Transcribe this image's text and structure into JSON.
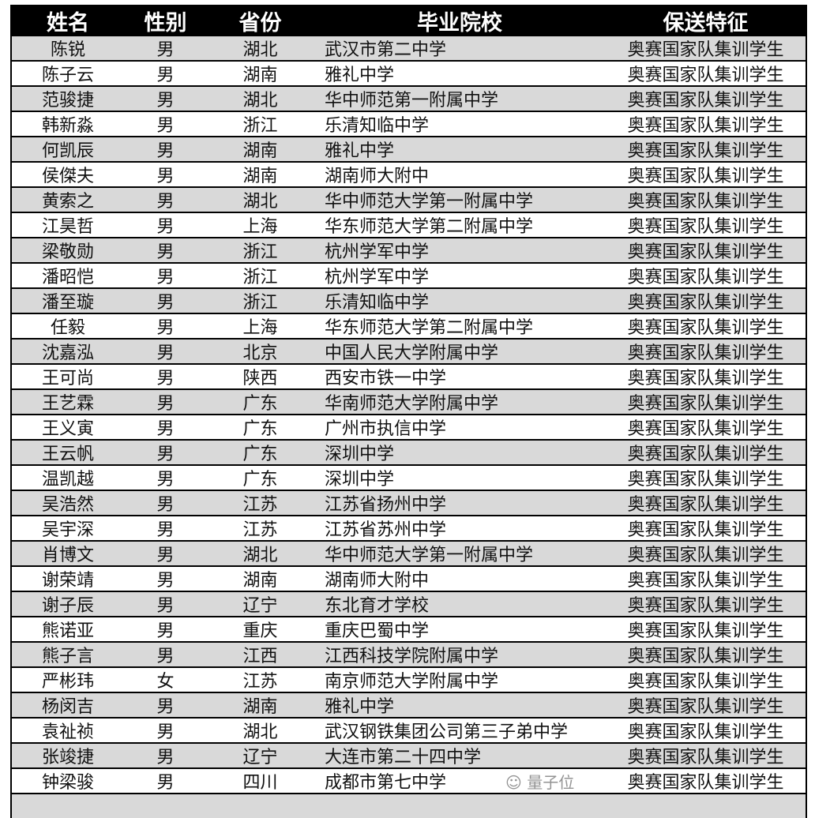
{
  "headers": [
    "姓名",
    "性别",
    "省份",
    "毕业院校",
    "保送特征"
  ],
  "rows": [
    [
      "陈锐",
      "男",
      "湖北",
      "武汉市第二中学",
      "奥赛国家队集训学生"
    ],
    [
      "陈子云",
      "男",
      "湖南",
      "雅礼中学",
      "奥赛国家队集训学生"
    ],
    [
      "范骏捷",
      "男",
      "湖北",
      "华中师范第一附属中学",
      "奥赛国家队集训学生"
    ],
    [
      "韩新淼",
      "男",
      "浙江",
      "乐清知临中学",
      "奥赛国家队集训学生"
    ],
    [
      "何凯辰",
      "男",
      "湖南",
      "雅礼中学",
      "奥赛国家队集训学生"
    ],
    [
      "侯傑夫",
      "男",
      "湖南",
      "湖南师大附中",
      "奥赛国家队集训学生"
    ],
    [
      "黄索之",
      "男",
      "湖北",
      "华中师范大学第一附属中学",
      "奥赛国家队集训学生"
    ],
    [
      "江昊哲",
      "男",
      "上海",
      "华东师范大学第二附属中学",
      "奥赛国家队集训学生"
    ],
    [
      "梁敬勋",
      "男",
      "浙江",
      "杭州学军中学",
      "奥赛国家队集训学生"
    ],
    [
      "潘昭恺",
      "男",
      "浙江",
      "杭州学军中学",
      "奥赛国家队集训学生"
    ],
    [
      "潘至璇",
      "男",
      "浙江",
      "乐清知临中学",
      "奥赛国家队集训学生"
    ],
    [
      "任毅",
      "男",
      "上海",
      "华东师范大学第二附属中学",
      "奥赛国家队集训学生"
    ],
    [
      "沈嘉泓",
      "男",
      "北京",
      "中国人民大学附属中学",
      "奥赛国家队集训学生"
    ],
    [
      "王可尚",
      "男",
      "陕西",
      "西安市铁一中学",
      "奥赛国家队集训学生"
    ],
    [
      "王艺霖",
      "男",
      "广东",
      "华南师范大学附属中学",
      "奥赛国家队集训学生"
    ],
    [
      "王义寅",
      "男",
      "广东",
      "广州市执信中学",
      "奥赛国家队集训学生"
    ],
    [
      "王云帆",
      "男",
      "广东",
      "深圳中学",
      "奥赛国家队集训学生"
    ],
    [
      "温凯越",
      "男",
      "广东",
      "深圳中学",
      "奥赛国家队集训学生"
    ],
    [
      "吴浩然",
      "男",
      "江苏",
      "江苏省扬州中学",
      "奥赛国家队集训学生"
    ],
    [
      "吴宇深",
      "男",
      "江苏",
      "江苏省苏州中学",
      "奥赛国家队集训学生"
    ],
    [
      "肖博文",
      "男",
      "湖北",
      "华中师范大学第一附属中学",
      "奥赛国家队集训学生"
    ],
    [
      "谢荣靖",
      "男",
      "湖南",
      "湖南师大附中",
      "奥赛国家队集训学生"
    ],
    [
      "谢子辰",
      "男",
      "辽宁",
      "东北育才学校",
      "奥赛国家队集训学生"
    ],
    [
      "熊诺亚",
      "男",
      "重庆",
      "重庆巴蜀中学",
      "奥赛国家队集训学生"
    ],
    [
      "熊子言",
      "男",
      "江西",
      "江西科技学院附属中学",
      "奥赛国家队集训学生"
    ],
    [
      "严彬玮",
      "女",
      "江苏",
      "南京师范大学附属中学",
      "奥赛国家队集训学生"
    ],
    [
      "杨闵吉",
      "男",
      "湖南",
      "雅礼中学",
      "奥赛国家队集训学生"
    ],
    [
      "袁祉祯",
      "男",
      "湖北",
      "武汉钢铁集团公司第三子弟中学",
      "奥赛国家队集训学生"
    ],
    [
      "张竣捷",
      "男",
      "辽宁",
      "大连市第二十四中学",
      "奥赛国家队集训学生"
    ],
    [
      "钟梁骏",
      "男",
      "四川",
      "成都市第七中学",
      "奥赛国家队集训学生"
    ]
  ],
  "watermark": "量子位"
}
